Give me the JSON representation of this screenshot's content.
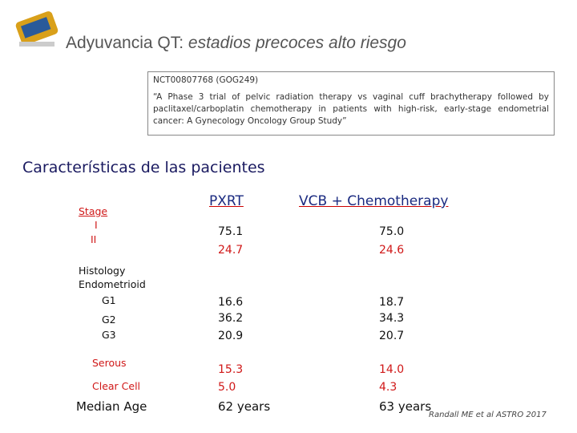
{
  "header": {
    "title_plain": "Adyuvancia QT:",
    "title_italic": "estadios precoces alto riesgo"
  },
  "trial_box": {
    "id": "NCT00807768 (GOG249)",
    "description": "“A Phase 3 trial of pelvic radiation therapy vs vaginal cuff brachytherapy followed by paclitaxel/carboplatin chemotherapy in patients with high-risk, early-stage endometrial cancer: A Gynecology Oncology Group Study”"
  },
  "section_title": "Características de las pacientes",
  "table": {
    "columns": [
      "PXRT",
      "VCB + Chemotherapy"
    ],
    "rows": [
      {
        "label": "Stage"
      },
      {
        "label": "I",
        "values": [
          "75.1",
          "75.0"
        ]
      },
      {
        "label": "II",
        "values": [
          "24.7",
          "24.6"
        ]
      },
      {
        "label": "Histology"
      },
      {
        "label": "Endometrioid"
      },
      {
        "label": "G1",
        "values": [
          "16.6",
          "18.7"
        ]
      },
      {
        "label": "G2",
        "values": [
          "36.2",
          "34.3"
        ]
      },
      {
        "label": "G3",
        "values": [
          "20.9",
          "20.7"
        ]
      },
      {
        "label": "Serous",
        "values": [
          "15.3",
          "14.0"
        ]
      },
      {
        "label": "Clear Cell",
        "values": [
          "5.0",
          "4.3"
        ]
      },
      {
        "label": "Median Age",
        "values": [
          "62 years",
          "63 years"
        ]
      }
    ]
  },
  "citation": "Randall ME et al ASTRO 2017"
}
